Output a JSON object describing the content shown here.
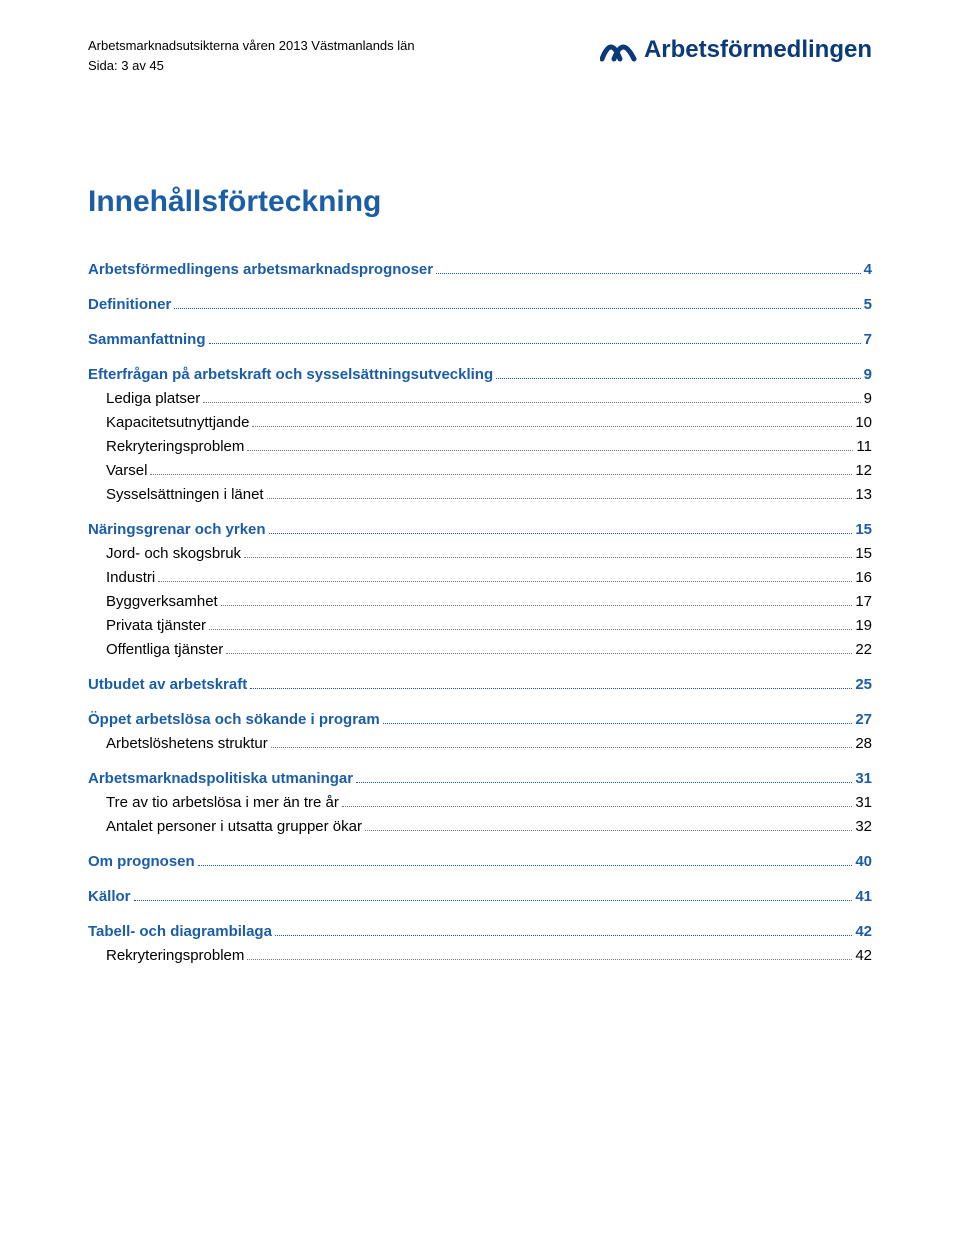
{
  "header": {
    "doc_title": "Arbetsmarknadsutsikterna våren 2013 Västmanlands län",
    "page_line": "Sida: 3 av 45",
    "logo_text": "Arbetsförmedlingen"
  },
  "title": "Innehållsförteckning",
  "toc": [
    {
      "level": 1,
      "label": "Arbetsförmedlingens arbetsmarknadsprognoser",
      "page": "4"
    },
    {
      "level": 1,
      "label": "Definitioner",
      "page": "5"
    },
    {
      "level": 1,
      "label": "Sammanfattning",
      "page": "7"
    },
    {
      "level": 1,
      "label": "Efterfrågan på arbetskraft och sysselsättningsutveckling",
      "page": "9"
    },
    {
      "level": 2,
      "label": "Lediga platser",
      "page": "9"
    },
    {
      "level": 2,
      "label": "Kapacitetsutnyttjande",
      "page": "10"
    },
    {
      "level": 2,
      "label": "Rekryteringsproblem",
      "page": "11"
    },
    {
      "level": 2,
      "label": "Varsel",
      "page": "12"
    },
    {
      "level": 2,
      "label": "Sysselsättningen i länet",
      "page": "13"
    },
    {
      "level": 1,
      "label": "Näringsgrenar och yrken",
      "page": "15"
    },
    {
      "level": 2,
      "label": "Jord- och skogsbruk",
      "page": "15"
    },
    {
      "level": 2,
      "label": "Industri",
      "page": "16"
    },
    {
      "level": 2,
      "label": "Byggverksamhet",
      "page": "17"
    },
    {
      "level": 2,
      "label": "Privata tjänster",
      "page": "19"
    },
    {
      "level": 2,
      "label": "Offentliga tjänster",
      "page": "22"
    },
    {
      "level": 1,
      "label": "Utbudet av arbetskraft",
      "page": "25"
    },
    {
      "level": 1,
      "label": "Öppet arbetslösa och sökande i program",
      "page": "27"
    },
    {
      "level": 2,
      "label": "Arbetslöshetens struktur",
      "page": "28"
    },
    {
      "level": 1,
      "label": "Arbetsmarknadspolitiska utmaningar",
      "page": "31"
    },
    {
      "level": 2,
      "label": "Tre av tio arbetslösa i mer än tre år",
      "page": "31"
    },
    {
      "level": 2,
      "label": "Antalet personer i utsatta grupper ökar",
      "page": "32"
    },
    {
      "level": 1,
      "label": "Om prognosen",
      "page": "40"
    },
    {
      "level": 1,
      "label": "Källor",
      "page": "41"
    },
    {
      "level": 1,
      "label": "Tabell- och diagrambilaga",
      "page": "42"
    },
    {
      "level": 2,
      "label": "Rekryteringsproblem",
      "page": "42"
    }
  ],
  "colors": {
    "heading": "#1c5da7",
    "logo": "#0a3a7a",
    "text": "#000000"
  }
}
